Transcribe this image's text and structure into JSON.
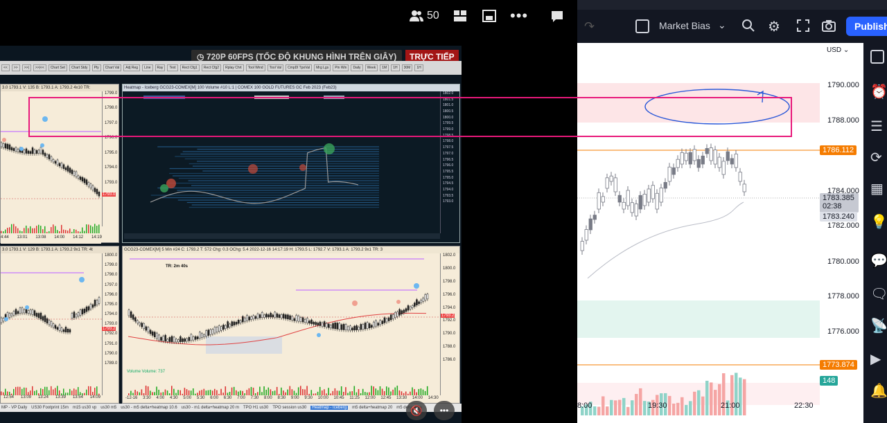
{
  "video": {
    "viewer_count": "50",
    "quality_badge": "720P 60FPS (TỐC ĐỘ KHUNG HÌNH TRÊN GIÂY)",
    "live_label": "TRỰC TIẾP",
    "toolbar_items": [
      "Chart Set",
      "Chart Stdy",
      "Pty",
      "Chart Val",
      "Adj Reg",
      "Line",
      "Ray",
      "Text",
      "Rect Cfg1",
      "Rect Cfg2",
      "Rplay Chrt",
      "Tool Wind",
      "Tool Val",
      "CmpDl TpoVal",
      "Mrg Lgs",
      "Pin Win",
      "Daily",
      "Week",
      "1M",
      "1H",
      "30M",
      "1H"
    ],
    "top_left_panel": {
      "title": "3.0  1793.1 V: 135 B: 1793.1 A: 1793.2 4x10 TR:",
      "prices": [
        "1799.0",
        "1798.0",
        "1797.0",
        "1796.0",
        "1795.0",
        "1794.0",
        "1793.0"
      ],
      "current": "1793.0",
      "times": [
        "4:44",
        "13:01",
        "13:08",
        "14:00",
        "14:12",
        "14:19"
      ]
    },
    "heatmap_panel": {
      "title": "Heatmap - Iceberg GCG23-COMEX[M] 100 Volume #10 L:1 | COMEX 100 GOLD FUTURES GC Feb 2023 (Feb23)",
      "prices": [
        "1802.0",
        "1801.5",
        "1801.0",
        "1800.5",
        "1800.0",
        "1799.5",
        "1799.0",
        "1798.5",
        "1798.0",
        "1797.5",
        "1797.0",
        "1796.5",
        "1796.0",
        "1795.5",
        "1795.0",
        "1794.5",
        "1794.0",
        "1793.5",
        "1793.0"
      ]
    },
    "bottom_left_panel": {
      "title": "3.0  1793.1 V: 129 B: 1793.1 A: 1793.2 9x1 TR: 4t",
      "prices": [
        "1800.0",
        "1799.0",
        "1798.0",
        "1797.0",
        "1796.0",
        "1795.0",
        "1794.0",
        "1793.0",
        "1792.0",
        "1791.0",
        "1790.0",
        "1789.0"
      ],
      "current": "1793.2",
      "times": [
        "12:54",
        "13:09",
        "13:24",
        "13:39",
        "13:54",
        "14:09"
      ]
    },
    "bottom_mid_panel": {
      "title": "GCG23-COMEX[M] 5 Min #24  C: 1793.2  T: 572  Chg: 0.3  OChg: 5.4  2022-12-16 14:17:19 H: 1793.5 L: 1792.7 V: 1793.1 A: 1793.2 9x1 TR: 3",
      "tr_label": "TR: 2m 40s",
      "volume_label": "Volume  Volume: 737",
      "prices": [
        "1802.0",
        "1800.0",
        "1798.0",
        "1796.0",
        "1794.0",
        "1792.0",
        "1790.0",
        "1788.0",
        "1786.0"
      ],
      "current": "1793.2",
      "times": [
        "-12-16",
        "3:30",
        "4:00",
        "4:30",
        "5:00",
        "5:30",
        "6:00",
        "6:30",
        "7:00",
        "7:30",
        "8:00",
        "8:30",
        "9:00",
        "9:30",
        "10:00",
        "10:45",
        "11:25",
        "12:00",
        "12:45",
        "13:30",
        "14:00",
        "14:30"
      ]
    },
    "bottom_tabs": [
      "MP - VP Daily",
      "US30 Footprint 15m",
      "m15 us30 vp",
      "us30 m5",
      "us30 - m5 delta+heatmap 10.6",
      "us30 - m1 delta+heatmap 20 m",
      "TPO H1 us30",
      "TPO session us30",
      "Heatmap - Iceberg",
      "m5 delta+heatmap 20",
      "m5 delta+hea"
    ]
  },
  "tradingview": {
    "indicator_name": "Market Bias",
    "publish_label": "Publish",
    "currency": "USD",
    "price_levels": [
      "1790.000",
      "1788.000",
      "1784.000",
      "1782.000",
      "1780.000",
      "1778.000",
      "1776.000"
    ],
    "tag_resistance": "1786.112",
    "tag_current": "1783.385",
    "tag_countdown": "02:38",
    "tag_second": "1783.240",
    "tag_support": "1773.874",
    "tag_volume": "148",
    "times": [
      "8:00",
      "19:30",
      "21:00",
      "22:30"
    ],
    "colors": {
      "accent": "#2962ff",
      "resistance": "#f57c00",
      "bull": "#26a69a",
      "bear": "#ef5350",
      "zone_red": "#fde5e7",
      "zone_green": "#e3f5ef",
      "highlight": "#e8187a"
    }
  }
}
